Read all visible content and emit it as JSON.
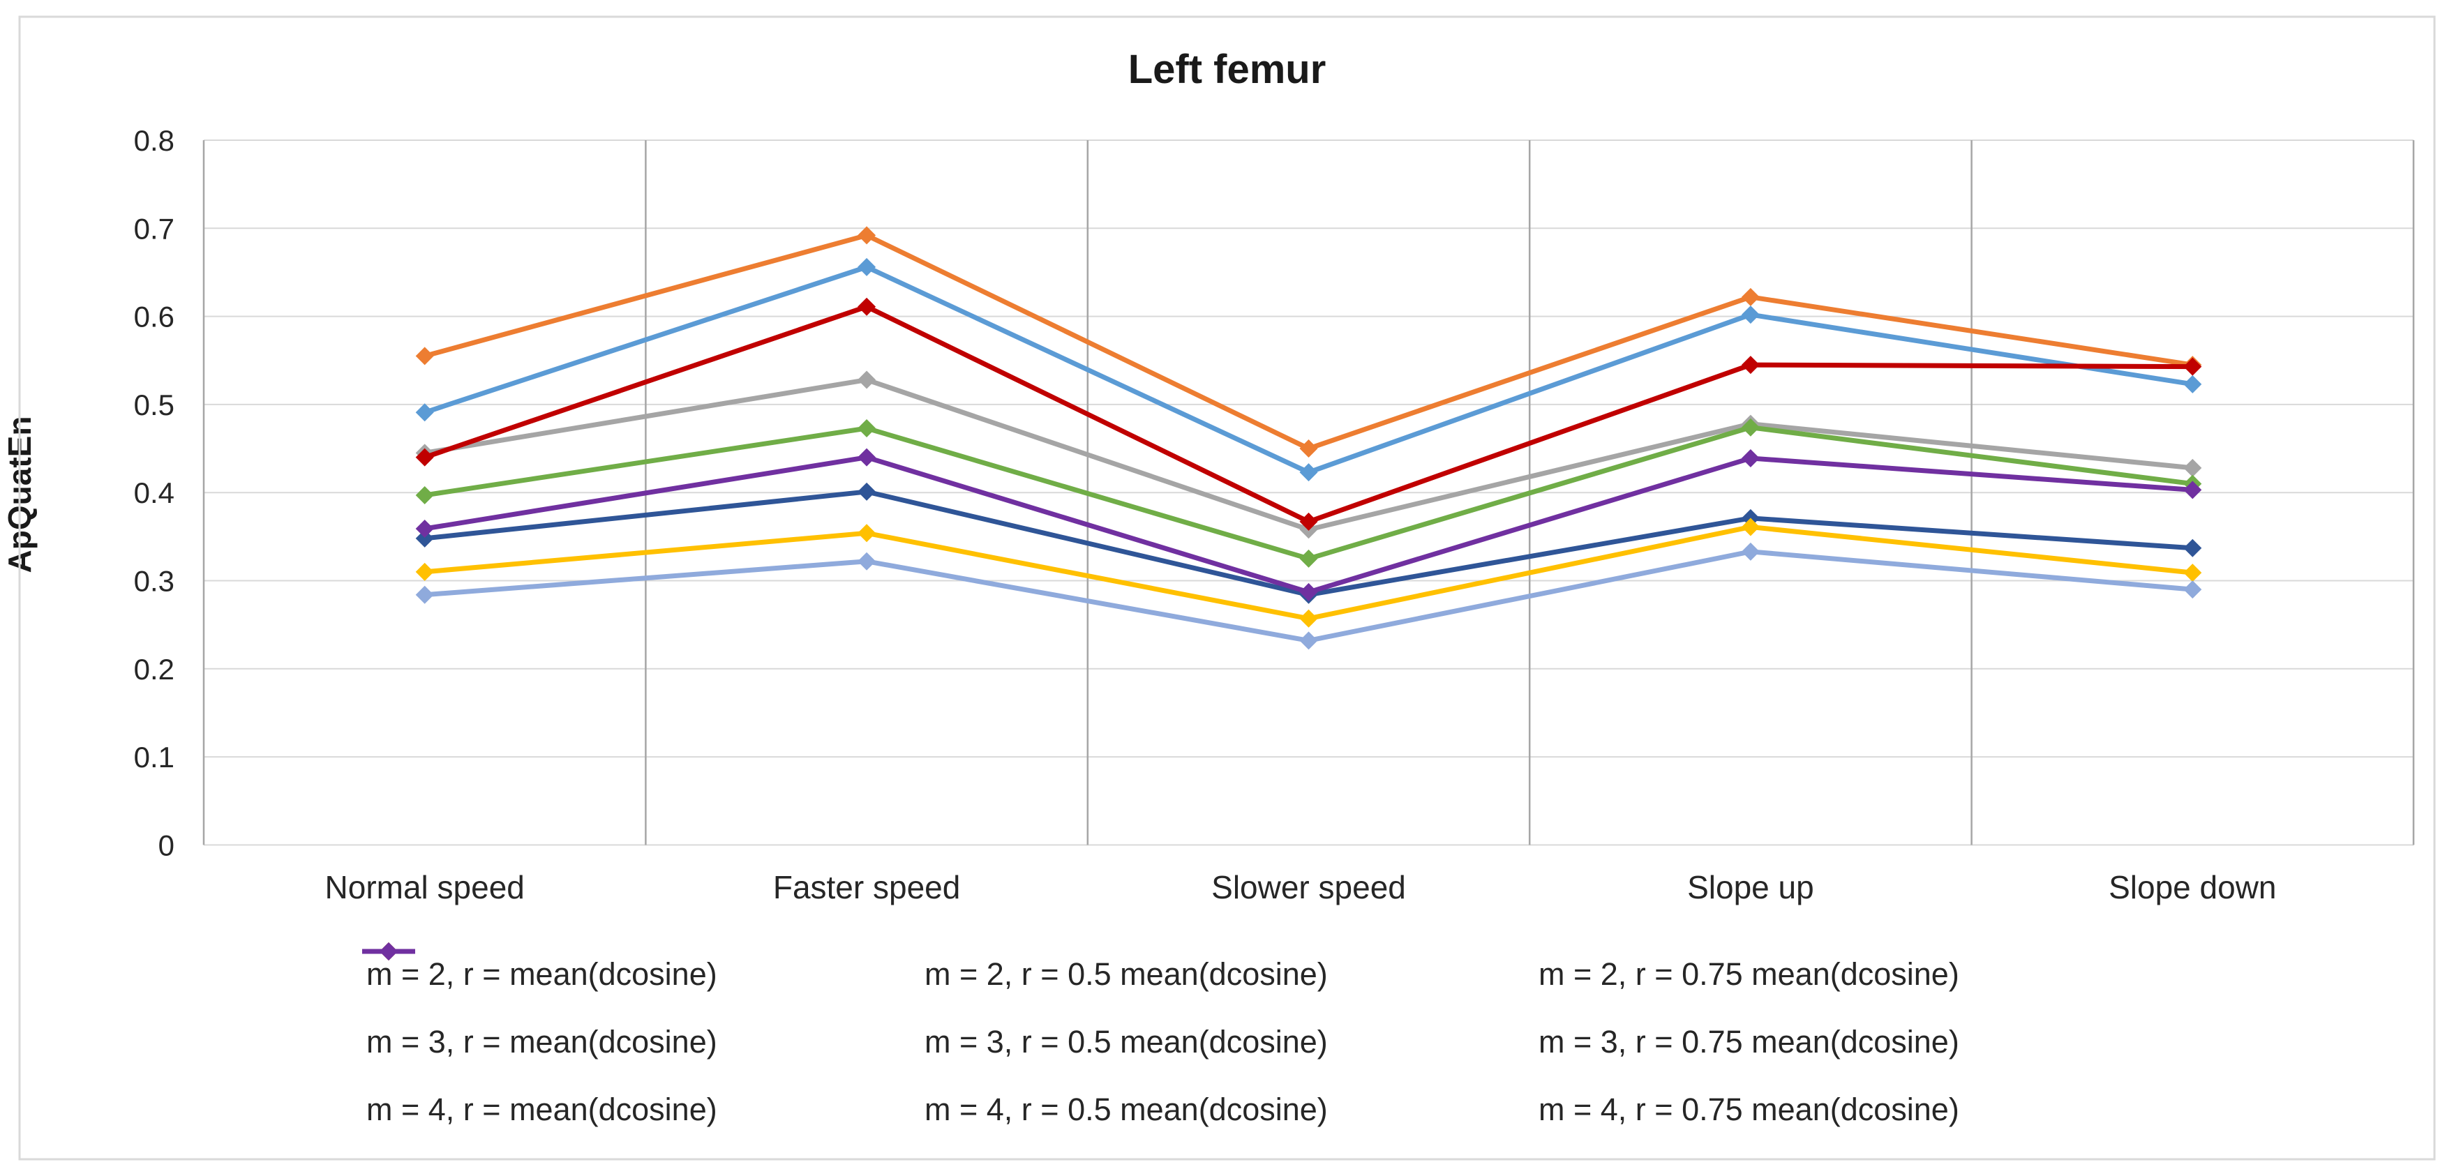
{
  "title": "Left femur",
  "y_axis": {
    "label": "ApQuatEn",
    "ticks": [
      "0.8",
      "0.7",
      "0.6",
      "0.5",
      "0.4",
      "0.3",
      "0.2",
      "0.1",
      "0"
    ]
  },
  "chart_data": {
    "type": "line",
    "title": "Left femur",
    "xlabel": "",
    "ylabel": "ApQuatEn",
    "ylim": [
      0,
      0.8
    ],
    "ytick_step": 0.1,
    "grid": "horizontal-light-and-vertical-category-separators",
    "legend_position": "bottom",
    "marker": "diamond",
    "categories": [
      "Normal speed",
      "Faster speed",
      "Slower speed",
      "Slope up",
      "Slope down"
    ],
    "series": [
      {
        "name": "m = 2, r = mean(dcosine)",
        "color": "#2F5597",
        "values": [
          0.348,
          0.401,
          0.284,
          0.371,
          0.337
        ]
      },
      {
        "name": "m = 2, r = 0.5 mean(dcosine)",
        "color": "#ED7D31",
        "values": [
          0.555,
          0.692,
          0.45,
          0.622,
          0.545
        ]
      },
      {
        "name": "m = 2, r = 0.75 mean(dcosine)",
        "color": "#A5A5A5",
        "values": [
          0.445,
          0.528,
          0.358,
          0.478,
          0.428
        ]
      },
      {
        "name": "m = 3, r = mean(dcosine)",
        "color": "#FFC000",
        "values": [
          0.31,
          0.354,
          0.257,
          0.361,
          0.309
        ]
      },
      {
        "name": "m = 3, r = 0.5 mean(dcosine)",
        "color": "#5B9BD5",
        "values": [
          0.491,
          0.656,
          0.423,
          0.602,
          0.523
        ]
      },
      {
        "name": "m = 3, r = 0.75 mean(dcosine)",
        "color": "#70AD47",
        "values": [
          0.397,
          0.473,
          0.325,
          0.474,
          0.41
        ]
      },
      {
        "name": "m = 4, r = mean(dcosine)",
        "color": "#8FAADC",
        "values": [
          0.284,
          0.322,
          0.232,
          0.333,
          0.29
        ]
      },
      {
        "name": "m = 4, r = 0.5 mean(dcosine)",
        "color": "#C00000",
        "values": [
          0.44,
          0.611,
          0.367,
          0.545,
          0.543
        ]
      },
      {
        "name": "m = 4, r = 0.75 mean(dcosine)",
        "color": "#7030A0",
        "values": [
          0.359,
          0.44,
          0.287,
          0.439,
          0.403
        ]
      }
    ]
  },
  "colors": {
    "horizontal_grid": "#D9D9D9",
    "vertical_grid": "#A6A6A6",
    "frame_border": "#D9D9D9",
    "text": "#262626",
    "background": "#FFFFFF"
  }
}
